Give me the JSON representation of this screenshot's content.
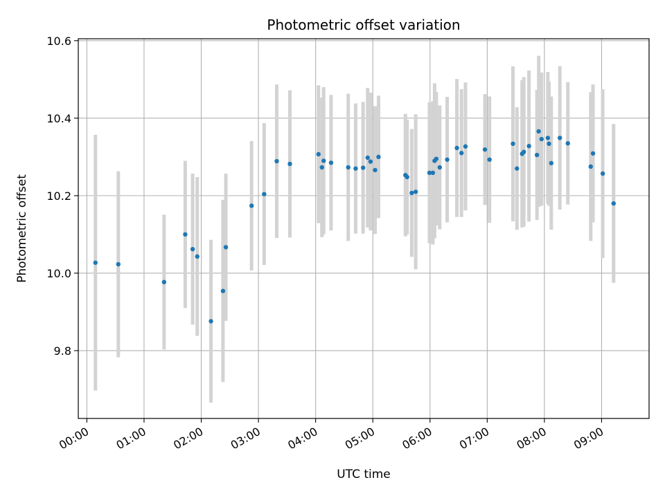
{
  "chart_data": {
    "type": "scatter",
    "title": "Photometric offset variation",
    "xlabel": "UTC time",
    "ylabel": "Photometric offset",
    "xlim": [
      -0.15,
      9.83
    ],
    "ylim": [
      9.625,
      10.605
    ],
    "grid": true,
    "x_ticks": [
      {
        "value": 0,
        "label": "00:00"
      },
      {
        "value": 1,
        "label": "01:00"
      },
      {
        "value": 2,
        "label": "02:00"
      },
      {
        "value": 3,
        "label": "03:00"
      },
      {
        "value": 4,
        "label": "04:00"
      },
      {
        "value": 5,
        "label": "05:00"
      },
      {
        "value": 6,
        "label": "06:00"
      },
      {
        "value": 7,
        "label": "07:00"
      },
      {
        "value": 8,
        "label": "08:00"
      },
      {
        "value": 9,
        "label": "09:00"
      }
    ],
    "y_ticks": [
      {
        "value": 9.8,
        "label": "9.8"
      },
      {
        "value": 10.0,
        "label": "10.0"
      },
      {
        "value": 10.2,
        "label": "10.2"
      },
      {
        "value": 10.4,
        "label": "10.4"
      },
      {
        "value": 10.6,
        "label": "10.6"
      }
    ],
    "colors": {
      "point": "#1f77b4",
      "errorbar": "#d3d3d3",
      "grid": "#b0b0b0"
    },
    "series": [
      {
        "x": [
          0.15,
          0.55,
          1.35,
          1.72,
          1.85,
          1.93,
          2.17,
          2.38,
          2.43,
          2.88,
          3.1,
          3.32,
          3.55,
          4.05,
          4.11,
          4.14,
          4.27,
          4.57,
          4.7,
          4.83,
          4.91,
          4.96,
          5.04,
          5.1,
          5.57,
          5.6,
          5.68,
          5.75,
          5.99,
          6.05,
          6.08,
          6.11,
          6.17,
          6.3,
          6.47,
          6.55,
          6.62,
          6.96,
          7.04,
          7.45,
          7.52,
          7.61,
          7.64,
          7.73,
          7.87,
          7.9,
          7.95,
          8.06,
          8.08,
          8.12,
          8.27,
          8.41,
          8.81,
          8.85,
          9.02,
          9.21
        ],
        "y": [
          10.027,
          10.023,
          9.977,
          10.1,
          10.062,
          10.043,
          9.876,
          9.954,
          10.067,
          10.174,
          10.204,
          10.289,
          10.282,
          10.307,
          10.273,
          10.29,
          10.285,
          10.273,
          10.27,
          10.272,
          10.298,
          10.288,
          10.266,
          10.3,
          10.253,
          10.248,
          10.207,
          10.21,
          10.259,
          10.259,
          10.29,
          10.295,
          10.273,
          10.293,
          10.323,
          10.31,
          10.327,
          10.319,
          10.293,
          10.334,
          10.27,
          10.308,
          10.313,
          10.328,
          10.305,
          10.366,
          10.346,
          10.349,
          10.334,
          10.284,
          10.349,
          10.335,
          10.275,
          10.309,
          10.257,
          10.18
        ],
        "yerr": [
          0.33,
          0.24,
          0.174,
          0.19,
          0.195,
          0.205,
          0.21,
          0.235,
          0.19,
          0.167,
          0.183,
          0.198,
          0.19,
          0.178,
          0.18,
          0.19,
          0.175,
          0.19,
          0.168,
          0.17,
          0.18,
          0.178,
          0.165,
          0.158,
          0.158,
          0.148,
          0.165,
          0.2,
          0.182,
          0.185,
          0.2,
          0.172,
          0.16,
          0.162,
          0.178,
          0.165,
          0.165,
          0.143,
          0.163,
          0.2,
          0.158,
          0.19,
          0.193,
          0.195,
          0.168,
          0.195,
          0.172,
          0.17,
          0.16,
          0.172,
          0.185,
          0.158,
          0.192,
          0.178,
          0.218,
          0.205
        ]
      }
    ]
  }
}
